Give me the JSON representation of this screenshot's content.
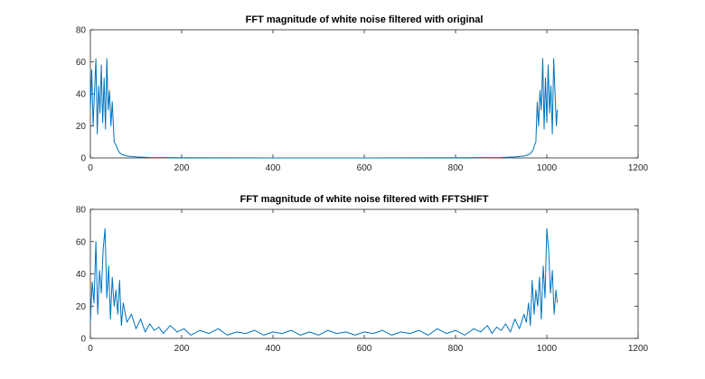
{
  "figure": {
    "background": "#ffffff",
    "line_color": "#0072BD"
  },
  "chart_data": [
    {
      "type": "line",
      "title": "FFT magnitude of white noise filtered with original",
      "xlabel": "",
      "ylabel": "",
      "xlim": [
        0,
        1200
      ],
      "ylim": [
        0,
        80
      ],
      "xticks": [
        0,
        200,
        400,
        600,
        800,
        1000,
        1200
      ],
      "yticks": [
        0,
        20,
        40,
        60,
        80
      ],
      "grid": false,
      "series": [
        {
          "x": [
            0,
            3,
            6,
            9,
            12,
            15,
            18,
            21,
            24,
            27,
            30,
            33,
            36,
            39,
            42,
            45,
            48,
            52,
            56,
            60,
            65,
            70,
            80,
            100,
            130,
            200,
            400,
            600,
            800,
            900,
            930,
            950,
            960,
            965,
            970,
            973,
            976,
            979,
            982,
            985,
            988,
            991,
            994,
            997,
            1000,
            1003,
            1006,
            1009,
            1012,
            1015,
            1018,
            1021,
            1023
          ],
          "y": [
            30,
            55,
            20,
            40,
            62,
            15,
            45,
            28,
            58,
            22,
            50,
            18,
            62,
            30,
            42,
            20,
            35,
            10,
            8,
            5,
            3,
            2,
            1.2,
            0.6,
            0.3,
            0.1,
            0,
            0,
            0.1,
            0.3,
            0.6,
            1.2,
            2,
            3,
            5,
            8,
            10,
            35,
            20,
            42,
            30,
            62,
            18,
            50,
            22,
            58,
            28,
            45,
            15,
            62,
            40,
            20,
            30
          ]
        }
      ]
    },
    {
      "type": "line",
      "title": "FFT magnitude of white noise filtered with FFTSHIFT",
      "xlabel": "",
      "ylabel": "",
      "xlim": [
        0,
        1200
      ],
      "ylim": [
        0,
        80
      ],
      "xticks": [
        0,
        200,
        400,
        600,
        800,
        1000,
        1200
      ],
      "yticks": [
        0,
        20,
        40,
        60,
        80
      ],
      "grid": false,
      "series": [
        {
          "x": [
            0,
            4,
            8,
            12,
            16,
            20,
            24,
            28,
            32,
            36,
            40,
            44,
            48,
            52,
            56,
            60,
            64,
            68,
            72,
            80,
            90,
            100,
            110,
            120,
            130,
            140,
            150,
            160,
            175,
            190,
            205,
            220,
            240,
            260,
            280,
            300,
            320,
            340,
            360,
            380,
            400,
            420,
            440,
            460,
            480,
            500,
            520,
            540,
            560,
            580,
            600,
            620,
            640,
            660,
            680,
            700,
            720,
            740,
            760,
            780,
            800,
            820,
            840,
            855,
            870,
            880,
            890,
            900,
            910,
            920,
            930,
            940,
            950,
            955,
            960,
            964,
            968,
            972,
            976,
            980,
            984,
            988,
            992,
            996,
            1000,
            1004,
            1008,
            1012,
            1016,
            1020,
            1023
          ],
          "y": [
            10,
            35,
            22,
            60,
            15,
            42,
            28,
            55,
            68,
            25,
            45,
            12,
            38,
            20,
            30,
            15,
            36,
            8,
            22,
            10,
            15,
            6,
            12,
            4,
            9,
            5,
            7,
            3,
            8,
            4,
            6,
            2,
            5,
            3,
            6,
            2,
            4,
            3,
            5,
            2,
            4,
            3,
            5,
            2,
            4,
            2,
            5,
            3,
            4,
            2,
            4,
            3,
            5,
            2,
            4,
            3,
            5,
            2,
            6,
            3,
            5,
            2,
            6,
            4,
            8,
            3,
            7,
            5,
            9,
            4,
            12,
            6,
            15,
            10,
            22,
            8,
            36,
            15,
            30,
            20,
            38,
            12,
            45,
            25,
            68,
            55,
            28,
            42,
            15,
            30,
            22
          ]
        }
      ]
    }
  ]
}
